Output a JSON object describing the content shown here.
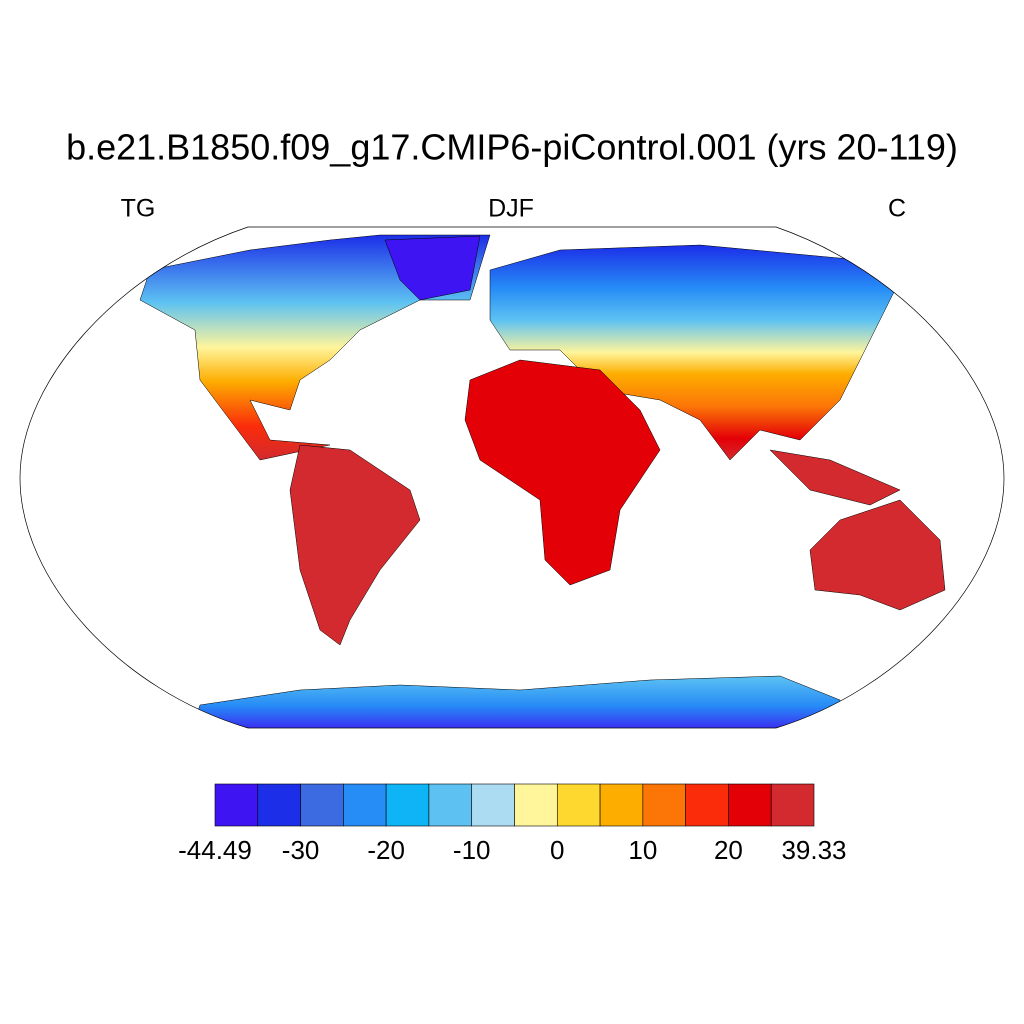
{
  "title": "b.e21.B1850.f09_g17.CMIP6-piControl.001 (yrs 20-119)",
  "left_label": "TG",
  "center_label": "DJF",
  "right_label": "C",
  "colorbar": {
    "colors": [
      "#3f14f2",
      "#1c2ee8",
      "#3c6ae0",
      "#268cf6",
      "#0fb4f6",
      "#5dc2f2",
      "#acdcf2",
      "#fff59b",
      "#fed82f",
      "#fdad00",
      "#fc7607",
      "#fa2c0a",
      "#e40007",
      "#d22a2e"
    ],
    "labels": [
      -44.49,
      -30,
      -20,
      -10,
      0,
      10,
      20,
      39.33
    ]
  }
}
